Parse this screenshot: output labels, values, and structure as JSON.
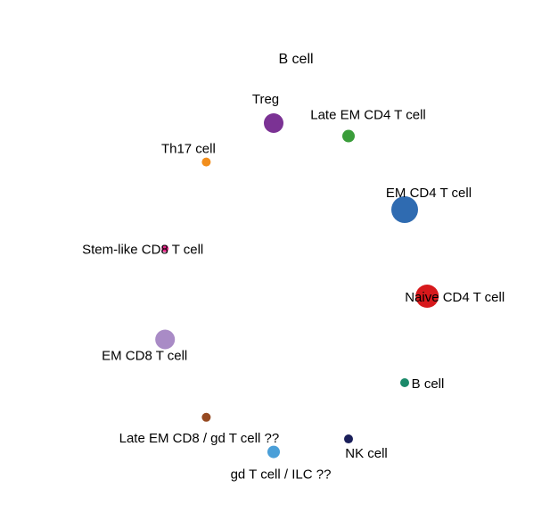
{
  "chart_data": {
    "type": "scatter",
    "title": "B cell",
    "grid": false,
    "axes_visible": false,
    "points": [
      {
        "label": "Treg",
        "x": 0.0,
        "y": 0.95,
        "size": 11,
        "color": "#7b3294"
      },
      {
        "label": "Late EM CD4 T cell",
        "x": 1.0,
        "y": 0.8,
        "size": 7,
        "color": "#3a9d3a"
      },
      {
        "label": "Th17 cell",
        "x": -0.9,
        "y": 0.5,
        "size": 5,
        "color": "#f28e1c"
      },
      {
        "label": "EM CD4 T cell",
        "x": 1.75,
        "y": -0.05,
        "size": 15,
        "color": "#2f6bb1"
      },
      {
        "label": "Stem-like CD8 T cell",
        "x": -1.45,
        "y": -0.5,
        "size": 4,
        "color": "#e7298a"
      },
      {
        "label": "Naive CD4 T cell",
        "x": 2.05,
        "y": -1.05,
        "size": 13,
        "color": "#d7191c"
      },
      {
        "label": "EM CD8 T cell",
        "x": -1.45,
        "y": -1.55,
        "size": 11,
        "color": "#a98bc6"
      },
      {
        "label": "B cell",
        "x": 1.75,
        "y": -2.05,
        "size": 5,
        "color": "#1b8a6a"
      },
      {
        "label": "Late EM CD8 / gd T cell ??",
        "x": -0.9,
        "y": -2.45,
        "size": 5,
        "color": "#964a22"
      },
      {
        "label": "NK cell",
        "x": 1.0,
        "y": -2.7,
        "size": 5,
        "color": "#1a1f5a"
      },
      {
        "label": "gd T cell / ILC ??",
        "x": 0.0,
        "y": -2.85,
        "size": 7,
        "color": "#4a9fd8"
      }
    ]
  }
}
